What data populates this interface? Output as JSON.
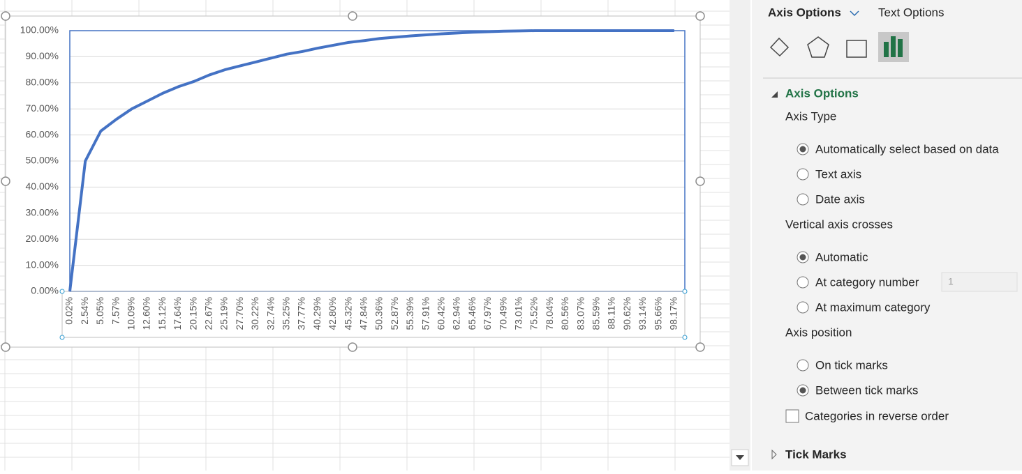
{
  "chart_data": {
    "type": "line",
    "categories": [
      "0.02%",
      "2.54%",
      "5.05%",
      "7.57%",
      "10.09%",
      "12.60%",
      "15.12%",
      "17.64%",
      "20.15%",
      "22.67%",
      "25.19%",
      "27.70%",
      "30.22%",
      "32.74%",
      "35.25%",
      "37.77%",
      "40.29%",
      "42.80%",
      "45.32%",
      "47.84%",
      "50.36%",
      "52.87%",
      "55.39%",
      "57.91%",
      "60.42%",
      "62.94%",
      "65.46%",
      "67.97%",
      "70.49%",
      "73.01%",
      "75.52%",
      "78.04%",
      "80.56%",
      "83.07%",
      "85.59%",
      "88.11%",
      "90.62%",
      "93.14%",
      "95.66%",
      "98.17%"
    ],
    "series": [
      {
        "color": "#4472c4",
        "values": [
          0,
          50,
          61.5,
          66,
          70,
          73,
          76,
          78.5,
          80.5,
          83,
          85,
          86.5,
          88,
          89.5,
          91,
          92,
          93.3,
          94.4,
          95.5,
          96.2,
          97,
          97.5,
          98,
          98.4,
          98.8,
          99.1,
          99.4,
          99.6,
          99.8,
          99.9,
          100,
          100,
          100,
          100,
          100,
          100,
          100,
          100,
          100,
          100
        ]
      }
    ],
    "ylim": [
      0,
      100
    ],
    "yticks": [
      {
        "value": 0,
        "label": "0.00%"
      },
      {
        "value": 10,
        "label": "10.00%"
      },
      {
        "value": 20,
        "label": "20.00%"
      },
      {
        "value": 30,
        "label": "30.00%"
      },
      {
        "value": 40,
        "label": "40.00%"
      },
      {
        "value": 50,
        "label": "50.00%"
      },
      {
        "value": 60,
        "label": "60.00%"
      },
      {
        "value": 70,
        "label": "70.00%"
      },
      {
        "value": 80,
        "label": "80.00%"
      },
      {
        "value": 90,
        "label": "90.00%"
      },
      {
        "value": 100,
        "label": "100.00%"
      }
    ],
    "grid": true
  },
  "panel": {
    "tabs": [
      "Axis Options",
      "Text Options"
    ],
    "section": "Axis Options",
    "groups": [
      {
        "label": "Axis Type",
        "options": [
          {
            "text": "Automatically select based on data",
            "selected": true
          },
          {
            "text": "Text axis",
            "selected": false
          },
          {
            "text": "Date axis",
            "selected": false
          }
        ]
      },
      {
        "label": "Vertical axis crosses",
        "options": [
          {
            "text": "Automatic",
            "selected": true
          },
          {
            "text": "At category number",
            "selected": false
          },
          {
            "text": "At maximum category",
            "selected": false
          }
        ]
      },
      {
        "label": "Axis position",
        "options": [
          {
            "text": "On tick marks",
            "selected": false
          },
          {
            "text": "Between tick marks",
            "selected": true
          }
        ]
      }
    ],
    "category_number": "1",
    "checkbox": "Categories in reverse order",
    "collapsed_section": "Tick Marks"
  }
}
